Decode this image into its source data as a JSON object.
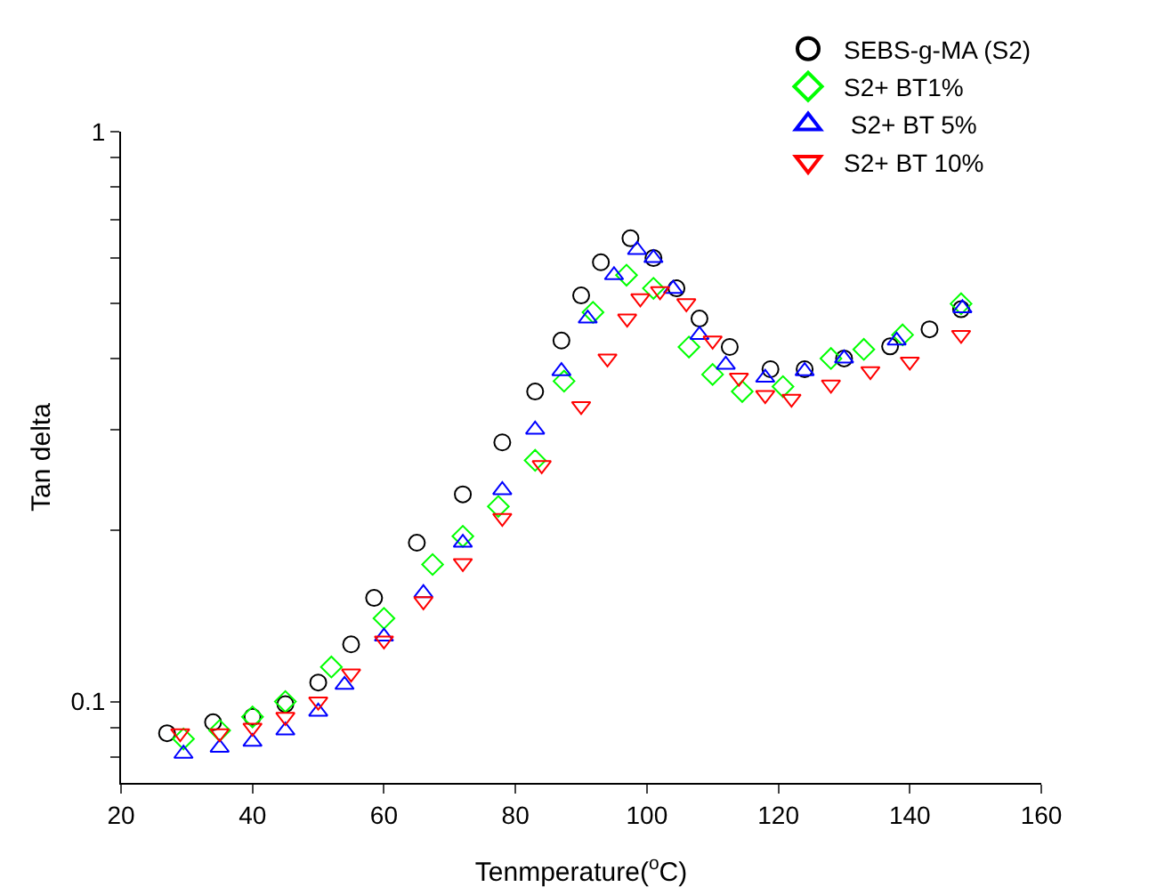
{
  "chart_data": {
    "type": "scatter",
    "xlabel": "Tenmperature($^{o}$C)",
    "ylabel": "Tan delta",
    "log": "y",
    "grid": false,
    "legend": "top right",
    "xlim": [
      20,
      160
    ],
    "xticks": [
      20,
      40,
      60,
      80,
      100,
      120,
      140,
      160
    ],
    "ylim": [
      0.072,
      1
    ],
    "yticks": [
      {
        "value": 0.08,
        "label": null
      },
      {
        "value": 0.09,
        "label": null
      },
      0.1,
      {
        "value": 0.2,
        "label": null
      },
      {
        "value": 0.3,
        "label": null
      },
      {
        "value": 0.4,
        "label": null
      },
      {
        "value": 0.5,
        "label": null
      },
      {
        "value": 0.6,
        "label": null
      },
      {
        "value": 0.7,
        "label": null
      },
      {
        "value": 0.8,
        "label": null
      },
      {
        "value": 0.9,
        "label": null
      },
      1
    ],
    "series": [
      {
        "name": "SEBS-g-MA (S2)",
        "color": "#000000",
        "marker": "circle",
        "x": [
          27,
          34,
          40,
          45,
          50,
          55,
          58.5,
          65,
          72,
          78,
          83,
          87,
          90,
          93,
          97.5,
          101,
          104.5,
          108,
          112.6,
          118.8,
          124,
          130,
          137,
          143,
          147.8
        ],
        "values": [
          0.088,
          0.092,
          0.094,
          0.099,
          0.108,
          0.126,
          0.152,
          0.19,
          0.231,
          0.285,
          0.35,
          0.43,
          0.516,
          0.59,
          0.65,
          0.6,
          0.531,
          0.47,
          0.419,
          0.383,
          0.383,
          0.4,
          0.42,
          0.45,
          0.488
        ]
      },
      {
        "name": "S2+ BT1%",
        "color": "#00ff00",
        "marker": "diamond",
        "x": [
          29.5,
          35,
          40,
          45,
          52,
          60,
          67.4,
          72,
          77.4,
          83,
          87.4,
          91.8,
          96.9,
          101,
          106.4,
          110,
          114.5,
          120.7,
          128,
          133,
          138.9,
          147.8
        ],
        "values": [
          0.086,
          0.089,
          0.094,
          0.1,
          0.115,
          0.14,
          0.174,
          0.195,
          0.22,
          0.265,
          0.365,
          0.482,
          0.56,
          0.531,
          0.419,
          0.375,
          0.35,
          0.357,
          0.4,
          0.415,
          0.44,
          0.499
        ]
      },
      {
        "name": " S2+ BT 5%",
        "color": "#0000ff",
        "marker": "triangle",
        "x": [
          29.5,
          35,
          40,
          45,
          50,
          54,
          60,
          66,
          72,
          78,
          83,
          87,
          91,
          95,
          98.5,
          101,
          104,
          108,
          112,
          118,
          124,
          130,
          138,
          148
        ],
        "values": [
          0.081,
          0.083,
          0.085,
          0.089,
          0.096,
          0.107,
          0.13,
          0.155,
          0.19,
          0.235,
          0.3,
          0.38,
          0.47,
          0.56,
          0.62,
          0.6,
          0.53,
          0.44,
          0.39,
          0.37,
          0.38,
          0.4,
          0.43,
          0.49
        ]
      },
      {
        "name": "S2+ BT 10%",
        "color": "#ff0000",
        "marker": "triangle-down",
        "x": [
          29,
          35,
          40,
          45,
          50,
          55,
          60,
          66,
          72,
          78,
          84,
          90,
          94,
          97,
          99,
          102,
          106,
          110,
          114,
          118,
          122,
          128,
          134,
          140,
          147.8
        ],
        "values": [
          0.088,
          0.088,
          0.09,
          0.094,
          0.1,
          0.112,
          0.128,
          0.15,
          0.175,
          0.21,
          0.26,
          0.33,
          0.4,
          0.47,
          0.51,
          0.525,
          0.5,
          0.43,
          0.37,
          0.345,
          0.34,
          0.36,
          0.38,
          0.395,
          0.44
        ]
      }
    ]
  }
}
